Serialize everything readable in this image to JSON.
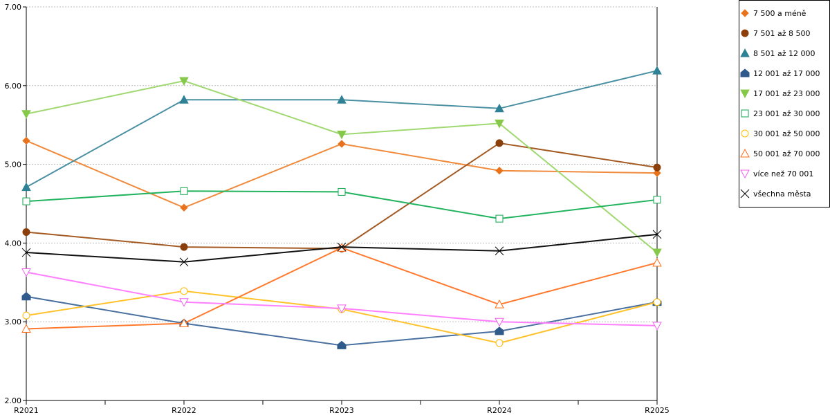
{
  "chart_data": {
    "type": "line",
    "title": "",
    "xlabel": "",
    "ylabel": "",
    "ylim": [
      2,
      7
    ],
    "yticks": [
      "2.00",
      "3.00",
      "4.00",
      "5.00",
      "6.00",
      "7.00"
    ],
    "categories": [
      "R2021",
      "R2022",
      "R2023",
      "R2024",
      "R2025"
    ],
    "grid": "horizontal dotted",
    "legend_position": "right",
    "series": [
      {
        "name": "7 500 a méně",
        "marker": "diamond",
        "filled": true,
        "color": "#e8731c",
        "line": "#f08a3c",
        "values": [
          5.3,
          4.45,
          5.26,
          4.92,
          4.89
        ]
      },
      {
        "name": "7 501 až 8 500",
        "marker": "circle",
        "filled": true,
        "color": "#8b3f0a",
        "line": "#a45a22",
        "values": [
          4.14,
          3.95,
          3.93,
          5.27,
          4.96
        ]
      },
      {
        "name": "8 501 až 12 000",
        "marker": "triangle-up",
        "filled": true,
        "color": "#2f8296",
        "line": "#4a90a2",
        "values": [
          4.71,
          5.82,
          5.82,
          5.71,
          6.19
        ]
      },
      {
        "name": "12 001 až 17 000",
        "marker": "pentagon",
        "filled": true,
        "color": "#2f5a8c",
        "line": "#4a70a0",
        "values": [
          3.32,
          2.98,
          2.7,
          2.88,
          3.25
        ]
      },
      {
        "name": "17 001 až 23 000",
        "marker": "triangle-down",
        "filled": true,
        "color": "#86c84a",
        "line": "#a0d870",
        "values": [
          5.64,
          6.06,
          5.38,
          5.52,
          3.88
        ]
      },
      {
        "name": "23 001 až 30 000",
        "marker": "square",
        "filled": false,
        "color": "#12a650",
        "line": "#22b35e",
        "values": [
          4.53,
          4.66,
          4.65,
          4.31,
          4.55
        ]
      },
      {
        "name": "30 001 až 50 000",
        "marker": "circle",
        "filled": false,
        "color": "#ffba00",
        "line": "#ffc22a",
        "values": [
          3.08,
          3.39,
          3.16,
          2.73,
          3.25
        ]
      },
      {
        "name": "50 001 až 70 000",
        "marker": "triangle-up",
        "filled": false,
        "color": "#ff6a14",
        "line": "#ff7a2e",
        "values": [
          2.91,
          2.98,
          3.94,
          3.22,
          3.75
        ]
      },
      {
        "name": "více než 70 001",
        "marker": "triangle-down",
        "filled": false,
        "color": "#f060f0",
        "line": "#ff80ff",
        "values": [
          3.63,
          3.25,
          3.17,
          3.0,
          2.95
        ]
      },
      {
        "name": "všechna města",
        "marker": "x",
        "filled": false,
        "color": "#000000",
        "line": "#111111",
        "values": [
          3.88,
          3.76,
          3.95,
          3.9,
          4.11
        ]
      }
    ]
  }
}
